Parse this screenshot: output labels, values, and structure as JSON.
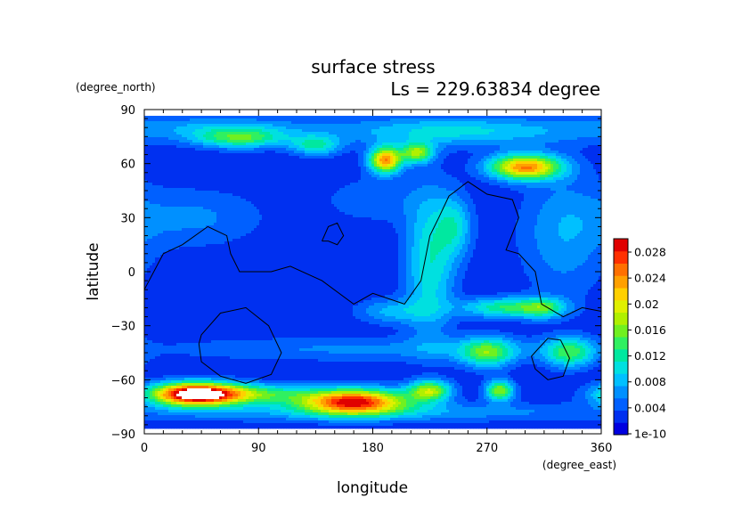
{
  "chart_data": {
    "type": "heatmap",
    "title": "surface stress",
    "subtitle": "Ls = 229.63834 degree",
    "xlabel": "longitude",
    "ylabel": "latitude",
    "xunit": "(degree_east)",
    "yunit": "(degree_north)",
    "xlim": [
      0,
      360
    ],
    "ylim": [
      -90,
      90
    ],
    "x_ticks": [
      "0",
      "90",
      "180",
      "270",
      "360"
    ],
    "y_ticks": [
      "90",
      "60",
      "30",
      "0",
      "−30",
      "−60",
      "−90"
    ],
    "colorbar": {
      "range": [
        0,
        0.03
      ],
      "labels": [
        "0.028",
        "0.024",
        "0.02",
        "0.016",
        "0.012",
        "0.008",
        "0.004",
        "1e-10"
      ],
      "colors": [
        "#0000e0",
        "#0030f0",
        "#0060ff",
        "#0090ff",
        "#00c0ff",
        "#00e0e0",
        "#00e8a0",
        "#30f060",
        "#70f020",
        "#b0f000",
        "#e0f000",
        "#ffd000",
        "#ffa000",
        "#ff7000",
        "#ff3000",
        "#e00000"
      ]
    },
    "background_value": 0.002,
    "features": [
      {
        "lon": 75,
        "lat": 74,
        "sx": 25,
        "sy": 4,
        "v": 0.011
      },
      {
        "lon": 135,
        "lat": 70,
        "sx": 14,
        "sy": 4,
        "v": 0.009
      },
      {
        "lon": 190,
        "lat": 62,
        "sx": 9,
        "sy": 5,
        "v": 0.022
      },
      {
        "lon": 215,
        "lat": 66,
        "sx": 9,
        "sy": 4,
        "v": 0.014
      },
      {
        "lon": 300,
        "lat": 58,
        "sx": 20,
        "sy": 5,
        "v": 0.022
      },
      {
        "lon": 245,
        "lat": 78,
        "sx": 70,
        "sy": 6,
        "v": 0.008
      },
      {
        "lon": 60,
        "lat": 80,
        "sx": 50,
        "sy": 5,
        "v": 0.005
      },
      {
        "lon": 225,
        "lat": 5,
        "sx": 14,
        "sy": 28,
        "v": 0.009
      },
      {
        "lon": 245,
        "lat": 25,
        "sx": 10,
        "sy": 12,
        "v": 0.007
      },
      {
        "lon": 285,
        "lat": -20,
        "sx": 25,
        "sy": 4,
        "v": 0.011
      },
      {
        "lon": 315,
        "lat": -20,
        "sx": 12,
        "sy": 4,
        "v": 0.008
      },
      {
        "lon": 195,
        "lat": -22,
        "sx": 20,
        "sy": 5,
        "v": 0.006
      },
      {
        "lon": 40,
        "lat": -68,
        "sx": 25,
        "sy": 4.5,
        "v": 0.032
      },
      {
        "lon": 90,
        "lat": -68,
        "sx": 30,
        "sy": 4,
        "v": 0.01
      },
      {
        "lon": 165,
        "lat": -72,
        "sx": 30,
        "sy": 5,
        "v": 0.026
      },
      {
        "lon": 225,
        "lat": -66,
        "sx": 12,
        "sy": 4,
        "v": 0.015
      },
      {
        "lon": 280,
        "lat": -66,
        "sx": 8,
        "sy": 4,
        "v": 0.015
      },
      {
        "lon": 270,
        "lat": -45,
        "sx": 15,
        "sy": 6,
        "v": 0.012
      },
      {
        "lon": 335,
        "lat": -45,
        "sx": 14,
        "sy": 6,
        "v": 0.011
      },
      {
        "lon": 180,
        "lat": -43,
        "sx": 130,
        "sy": 5,
        "v": 0.004
      },
      {
        "lon": 180,
        "lat": -78,
        "sx": 160,
        "sy": 4,
        "v": 0.005
      },
      {
        "lon": 40,
        "lat": 30,
        "sx": 40,
        "sy": 12,
        "v": 0.004
      },
      {
        "lon": 330,
        "lat": 20,
        "sx": 25,
        "sy": 25,
        "v": 0.005
      },
      {
        "lon": 180,
        "lat": 40,
        "sx": 30,
        "sy": 10,
        "v": 0.003
      }
    ],
    "contours": [
      {
        "name": "continent",
        "points": [
          [
            0,
            -10
          ],
          [
            15,
            10
          ],
          [
            30,
            15
          ],
          [
            50,
            25
          ],
          [
            65,
            20
          ],
          [
            68,
            10
          ],
          [
            75,
            0
          ],
          [
            100,
            0
          ],
          [
            115,
            3
          ],
          [
            140,
            -5
          ],
          [
            165,
            -18
          ],
          [
            180,
            -12
          ],
          [
            205,
            -18
          ],
          [
            218,
            -5
          ],
          [
            225,
            20
          ],
          [
            232,
            30
          ],
          [
            240,
            42
          ],
          [
            255,
            50
          ],
          [
            270,
            43
          ],
          [
            290,
            40
          ],
          [
            295,
            30
          ],
          [
            285,
            12
          ],
          [
            295,
            10
          ],
          [
            308,
            0
          ],
          [
            313,
            -18
          ],
          [
            330,
            -25
          ],
          [
            345,
            -20
          ],
          [
            360,
            -22
          ]
        ]
      },
      {
        "name": "island",
        "points": [
          [
            140,
            17
          ],
          [
            145,
            25
          ],
          [
            152,
            27
          ],
          [
            157,
            20
          ],
          [
            152,
            15
          ],
          [
            145,
            17
          ],
          [
            140,
            17
          ]
        ]
      },
      {
        "name": "southern-ring-west",
        "points": [
          [
            45,
            -35
          ],
          [
            60,
            -23
          ],
          [
            80,
            -20
          ],
          [
            98,
            -30
          ],
          [
            108,
            -45
          ],
          [
            100,
            -57
          ],
          [
            80,
            -62
          ],
          [
            60,
            -58
          ],
          [
            45,
            -50
          ],
          [
            43,
            -40
          ],
          [
            45,
            -35
          ]
        ]
      },
      {
        "name": "southern-ring-east",
        "points": [
          [
            310,
            -43
          ],
          [
            318,
            -37
          ],
          [
            328,
            -38
          ],
          [
            335,
            -48
          ],
          [
            330,
            -58
          ],
          [
            318,
            -60
          ],
          [
            308,
            -54
          ],
          [
            305,
            -47
          ],
          [
            310,
            -43
          ]
        ]
      }
    ]
  }
}
